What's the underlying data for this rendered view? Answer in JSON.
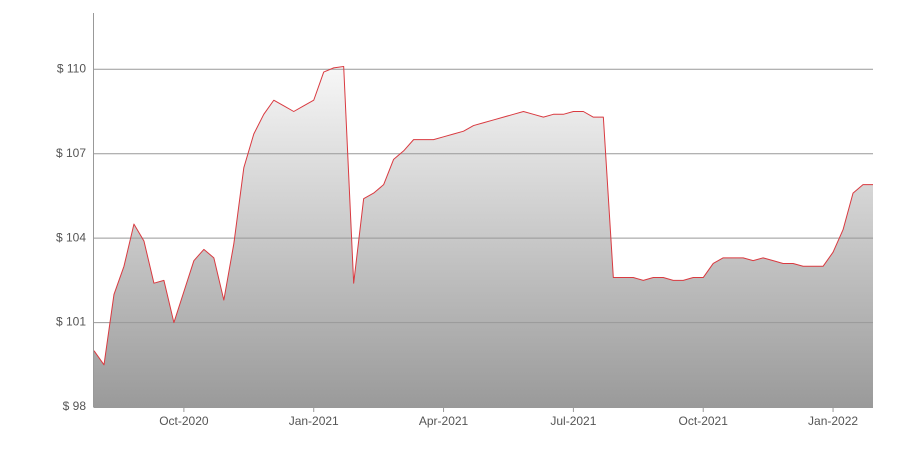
{
  "chart_data": {
    "type": "area",
    "categories": [
      null,
      null,
      null,
      null,
      null,
      null,
      null,
      null,
      null,
      "Oct-2020",
      null,
      null,
      null,
      null,
      null,
      null,
      null,
      null,
      null,
      null,
      null,
      null,
      "Jan-2021",
      null,
      null,
      null,
      null,
      null,
      null,
      null,
      null,
      null,
      null,
      null,
      null,
      "Apr-2021",
      null,
      null,
      null,
      null,
      null,
      null,
      null,
      null,
      null,
      null,
      null,
      null,
      "Jul-2021",
      null,
      null,
      null,
      null,
      null,
      null,
      null,
      null,
      null,
      null,
      null,
      null,
      "Oct-2021",
      null,
      null,
      null,
      null,
      null,
      null,
      null,
      null,
      null,
      null,
      null,
      null,
      "Jan-2022",
      null,
      null,
      null,
      null
    ],
    "values": [
      100.0,
      99.5,
      102.0,
      103.0,
      104.5,
      103.9,
      102.4,
      102.5,
      101.0,
      102.1,
      103.2,
      103.6,
      103.3,
      101.8,
      103.8,
      106.5,
      107.7,
      108.4,
      108.9,
      108.7,
      108.5,
      108.7,
      108.9,
      109.9,
      110.05,
      110.1,
      102.4,
      105.4,
      105.6,
      105.9,
      106.8,
      107.1,
      107.5,
      107.5,
      107.5,
      107.6,
      107.7,
      107.8,
      108.0,
      108.1,
      108.2,
      108.3,
      108.4,
      108.5,
      108.4,
      108.3,
      108.4,
      108.4,
      108.5,
      108.5,
      108.3,
      108.3,
      102.6,
      102.6,
      102.6,
      102.5,
      102.6,
      102.6,
      102.5,
      102.5,
      102.6,
      102.6,
      103.1,
      103.3,
      103.3,
      103.3,
      103.2,
      103.3,
      103.2,
      103.1,
      103.1,
      103.0,
      103.0,
      103.0,
      103.5,
      104.3,
      105.6,
      105.9,
      105.9
    ],
    "color": "#d93a40",
    "ylim": [
      98,
      112
    ],
    "yticks": [
      {
        "value": 98,
        "label": "$ 98"
      },
      {
        "value": 101,
        "label": "$ 101"
      },
      {
        "value": 104,
        "label": "$ 104"
      },
      {
        "value": 107,
        "label": "$ 107"
      },
      {
        "value": 110,
        "label": "$ 110"
      }
    ],
    "grid": true
  }
}
